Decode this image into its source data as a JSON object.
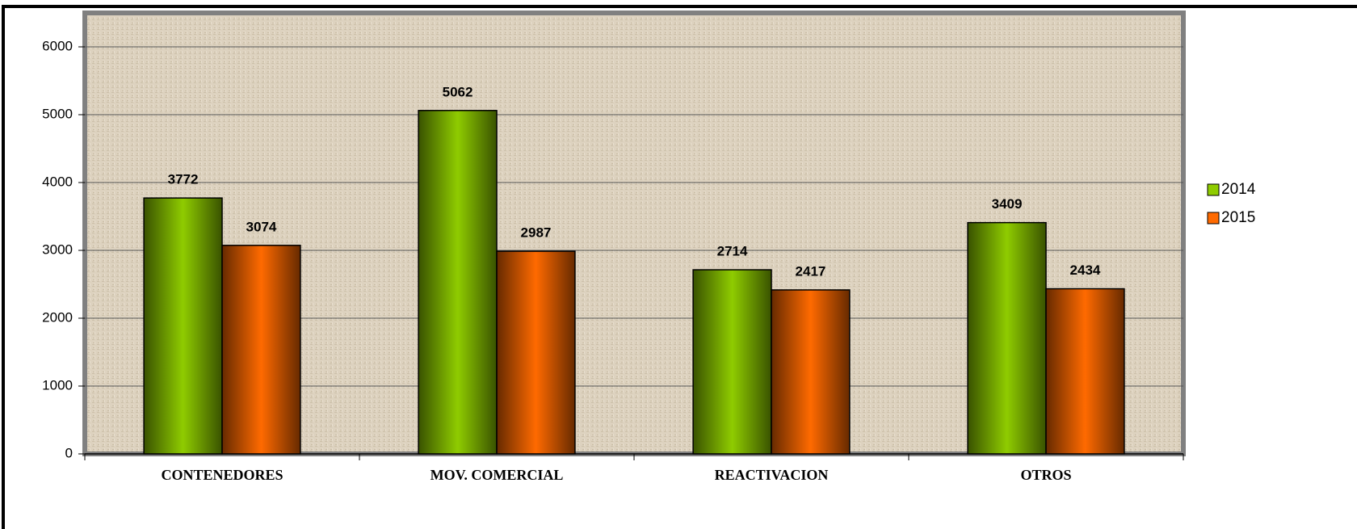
{
  "chart_data": {
    "type": "bar",
    "categories": [
      "CONTENEDORES",
      "MOV. COMERCIAL",
      "REACTIVACION",
      "OTROS"
    ],
    "series": [
      {
        "name": "2014",
        "color": "#8fcc00",
        "values": [
          3772,
          5062,
          2714,
          3409
        ]
      },
      {
        "name": "2015",
        "color": "#ff6a00",
        "values": [
          3074,
          2987,
          2417,
          2434
        ]
      }
    ],
    "ylim": [
      0,
      6500
    ],
    "yticks": [
      0,
      1000,
      2000,
      3000,
      4000,
      5000,
      6000
    ],
    "grid": true,
    "legend": "right"
  }
}
